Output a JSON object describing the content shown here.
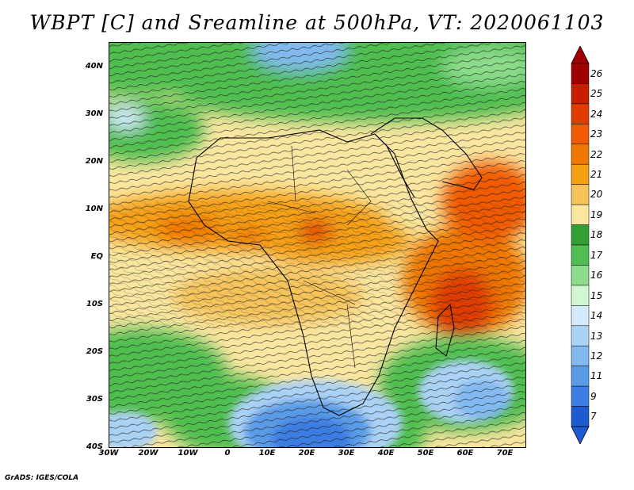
{
  "title": "WBPT [C] and Sreamline at 500hPa, VT: 2020061103",
  "credit": "GrADS: IGES/COLA",
  "map": {
    "lon_range": [
      -30,
      75
    ],
    "lat_range": [
      -40,
      45
    ],
    "lat_ticks": [
      "40N",
      "30N",
      "20N",
      "10N",
      "EQ",
      "10S",
      "20S",
      "30S",
      "40S"
    ],
    "lon_ticks": [
      "30W",
      "20W",
      "10W",
      "0",
      "10E",
      "20E",
      "30E",
      "40E",
      "50E",
      "60E",
      "70E"
    ]
  },
  "colorbar": {
    "labels": [
      "26",
      "25",
      "24",
      "23",
      "22",
      "21",
      "20",
      "19",
      "18",
      "17",
      "16",
      "15",
      "14",
      "13",
      "12",
      "11",
      "9",
      "7"
    ],
    "colors": [
      "#a00000",
      "#c81e00",
      "#e13c00",
      "#f05a00",
      "#f07800",
      "#f5a014",
      "#f5c35a",
      "#fae6a0",
      "#32a032",
      "#50be50",
      "#8cdc8c",
      "#d2f5d2",
      "#d2ebfa",
      "#aad2f5",
      "#82b9f0",
      "#5a9be6",
      "#3c7de1",
      "#1e5ad2"
    ]
  },
  "chart_data": {
    "type": "heatmap",
    "title": "WBPT [C] and Sreamline at 500hPa, VT: 2020061103",
    "variable": "WBPT [C]",
    "level": "500hPa",
    "valid_time": "2020061103",
    "xlim": [
      -30,
      75
    ],
    "ylim": [
      -40,
      45
    ],
    "color_levels": [
      7,
      9,
      11,
      12,
      13,
      14,
      15,
      16,
      17,
      18,
      19,
      20,
      21,
      22,
      23,
      24,
      25,
      26
    ]
  }
}
